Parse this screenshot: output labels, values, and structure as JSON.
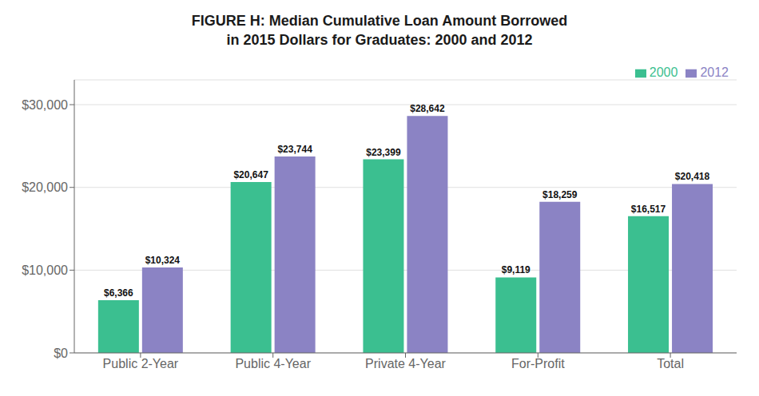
{
  "chart_data": {
    "type": "bar",
    "title": "FIGURE H: Median Cumulative Loan Amount Borrowed",
    "subtitle": "in 2015 Dollars for Graduates: 2000 and 2012",
    "categories": [
      "Public 2-Year",
      "Public 4-Year",
      "Private 4-Year",
      "For-Profit",
      "Total"
    ],
    "series": [
      {
        "name": "2000",
        "color": "#3bbf90",
        "values": [
          6366,
          20647,
          23399,
          9119,
          16517
        ],
        "value_labels": [
          "$6,366",
          "$20,647",
          "$23,399",
          "$9,119",
          "$16,517"
        ]
      },
      {
        "name": "2012",
        "color": "#8b83c4",
        "values": [
          10324,
          23744,
          28642,
          18259,
          20418
        ],
        "value_labels": [
          "$10,324",
          "$23,744",
          "$28,642",
          "$18,259",
          "$20,418"
        ]
      }
    ],
    "ylim": [
      0,
      33000
    ],
    "yticks": [
      {
        "value": 0,
        "label": "$0"
      },
      {
        "value": 10000,
        "label": "$10,000"
      },
      {
        "value": 20000,
        "label": "$20,000"
      },
      {
        "value": 30000,
        "label": "$30,000"
      }
    ],
    "grid": true,
    "legend": "upper right",
    "data_labels": true
  }
}
